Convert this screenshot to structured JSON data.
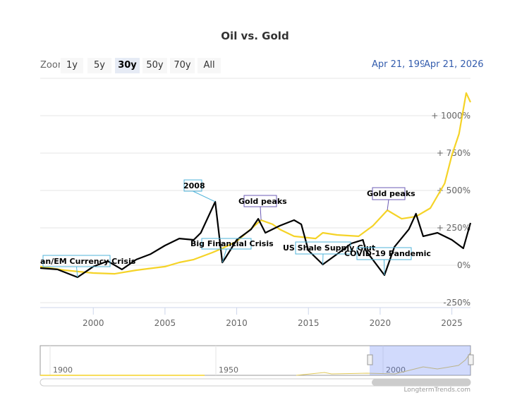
{
  "chart_data": {
    "type": "line",
    "title": "Oil vs. Gold",
    "xlim": [
      1996.3,
      2026.3
    ],
    "ylim": [
      -250,
      1250
    ],
    "x_ticks": [
      2000,
      2005,
      2010,
      2015,
      2020,
      2025
    ],
    "x_tick_labels": [
      "2000",
      "2005",
      "2010",
      "2015",
      "2020",
      "2025"
    ],
    "y_ticks": [
      -250,
      0,
      250,
      500,
      750,
      1000
    ],
    "y_tick_labels": [
      "-250%",
      "0%",
      "+ 250%",
      "+ 500%",
      "+ 750%",
      "+ 1000%"
    ],
    "series": [
      {
        "name": "Oil",
        "color": "#000000",
        "x": [
          1996.3,
          1997.5,
          1998.9,
          2000,
          2001,
          2002,
          2003,
          2004,
          2005,
          2006,
          2007,
          2007.5,
          2008.5,
          2009,
          2009.2,
          2010,
          2011,
          2011.5,
          2012,
          2013,
          2014,
          2014.5,
          2015,
          2016,
          2017,
          2018,
          2018.8,
          2019,
          2020.3,
          2021,
          2022,
          2022.5,
          2023,
          2024,
          2025,
          2025.8,
          2026.3
        ],
        "y": [
          -19,
          -28,
          -80,
          -9,
          28,
          -28,
          38,
          75,
          132,
          179,
          170,
          217,
          425,
          19,
          47,
          170,
          240,
          311,
          217,
          264,
          302,
          274,
          99,
          5,
          75,
          146,
          170,
          99,
          -66,
          123,
          240,
          345,
          194,
          217,
          170,
          113,
          283
        ]
      },
      {
        "name": "Gold",
        "color": "#f5d327",
        "x": [
          1996.3,
          1998,
          2000,
          2001.5,
          2003,
          2005,
          2006,
          2007,
          2008.3,
          2009,
          2010,
          2011.7,
          2012.5,
          2013,
          2014,
          2015.5,
          2016,
          2017,
          2018.5,
          2019.5,
          2020.5,
          2021.5,
          2022.5,
          2023.5,
          2024.5,
          2025,
          2025.5,
          2026,
          2026.3
        ],
        "y": [
          -9,
          -33,
          -52,
          -57,
          -33,
          -9,
          19,
          38,
          85,
          113,
          160,
          302,
          274,
          240,
          194,
          179,
          217,
          203,
          194,
          264,
          368,
          311,
          326,
          382,
          547,
          736,
          878,
          1152,
          1090
        ]
      }
    ],
    "annotations": [
      {
        "text": "an/EM Currency Crisis",
        "x": 1998.9,
        "series": "Oil"
      },
      {
        "text": "2008",
        "x": 2008.5,
        "series": "Oil"
      },
      {
        "text": "Big Financial Crisis",
        "x": 2009,
        "series": "Oil"
      },
      {
        "text": "Gold peaks",
        "x": 2011.7,
        "series": "Gold"
      },
      {
        "text": "US Shale Supply Glut",
        "x": 2016,
        "series": "Oil"
      },
      {
        "text": "COVID-19 Pandemic",
        "x": 2020.3,
        "series": "Oil"
      },
      {
        "text": "Gold peaks",
        "x": 2020.5,
        "series": "Gold"
      }
    ],
    "navigator_labels": [
      "1900",
      "1950",
      "2000"
    ]
  },
  "toolbar": {
    "zoom_label": "Zoom",
    "buttons": [
      "1y",
      "5y",
      "30y",
      "50y",
      "70y",
      "All"
    ],
    "selected": "30y",
    "from_date": "Apr 21, 1996",
    "to_date": "Apr 21, 2026"
  },
  "credits": "LongtermTrends.com"
}
